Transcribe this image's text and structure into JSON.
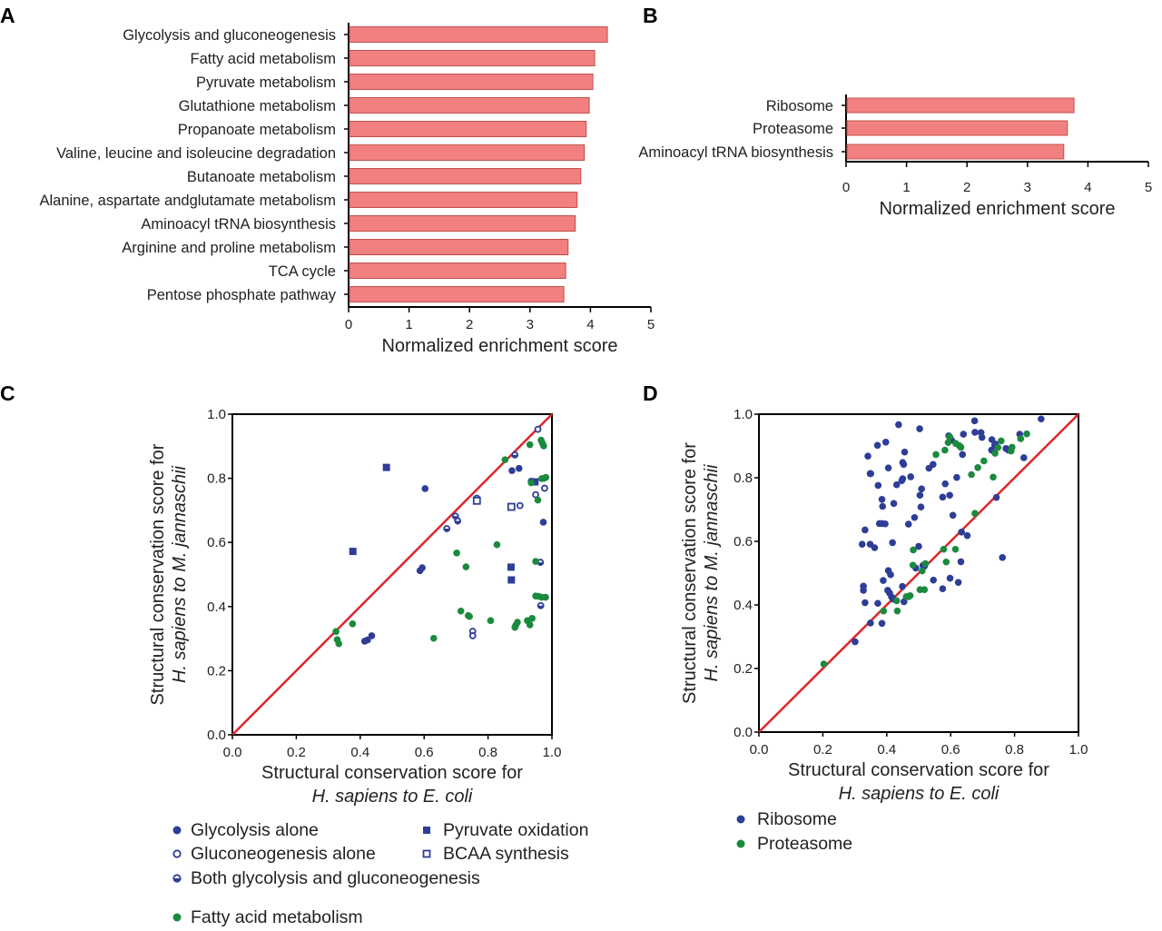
{
  "colors": {
    "bar_fill": "#f28080",
    "bar_stroke": "#c0504d",
    "blue": "#2e3d96",
    "green": "#1b8a3e",
    "diagonal": "#e0242a"
  },
  "chart_data": [
    {
      "panel": "A",
      "type": "bar",
      "orientation": "horizontal",
      "categories": [
        "Glycolysis and gluconeogenesis",
        "Fatty acid metabolism",
        "Pyruvate metabolism",
        "Glutathione metabolism",
        "Propanoate metabolism",
        "Valine, leucine and isoleucine degradation",
        "Butanoate metabolism",
        "Alanine, aspartate andglutamate metabolism",
        "Aminoacyl tRNA biosynthesis",
        "Arginine and proline metabolism",
        "TCA cycle",
        "Pentose phosphate pathway"
      ],
      "values": [
        4.28,
        4.07,
        4.04,
        3.98,
        3.93,
        3.9,
        3.84,
        3.78,
        3.75,
        3.63,
        3.59,
        3.56
      ],
      "xlabel": "Normalized enrichment score",
      "xlim": [
        0,
        5
      ],
      "xticks": [
        "0",
        "1",
        "2",
        "3",
        "4",
        "5"
      ]
    },
    {
      "panel": "B",
      "type": "bar",
      "orientation": "horizontal",
      "categories": [
        "Ribosome",
        "Proteasome",
        "Aminoacyl tRNA biosynthesis"
      ],
      "values": [
        3.77,
        3.66,
        3.6
      ],
      "xlabel": "Normalized enrichment score",
      "xlim": [
        0,
        5
      ],
      "xticks": [
        "0",
        "1",
        "2",
        "3",
        "4",
        "5"
      ]
    },
    {
      "panel": "C",
      "type": "scatter",
      "xlabel": [
        "Structural conservation score for",
        "H. sapiens to E. coli"
      ],
      "ylabel": [
        "Structural conservation score for",
        "H. sapiens to M. jannaschii"
      ],
      "xlim": [
        0,
        1
      ],
      "ylim": [
        0,
        1
      ],
      "xticks": [
        "0.0",
        "0.2",
        "0.4",
        "0.6",
        "0.8",
        "1.0"
      ],
      "yticks": [
        "0.0",
        "0.2",
        "0.4",
        "0.6",
        "0.8",
        "1.0"
      ],
      "diagonal": true,
      "series": [
        {
          "name": "Glycolysis alone",
          "marker": "circle",
          "color": "blue",
          "points": [
            [
              0.603,
              0.768
            ],
            [
              0.875,
              0.824
            ],
            [
              0.897,
              0.831
            ],
            [
              0.973,
              0.663
            ],
            [
              0.587,
              0.512
            ],
            [
              0.594,
              0.521
            ],
            [
              0.414,
              0.292
            ],
            [
              0.423,
              0.296
            ],
            [
              0.436,
              0.309
            ],
            [
              0.935,
              0.791
            ]
          ]
        },
        {
          "name": "Gluconeogenesis alone",
          "marker": "open-circle",
          "color": "blue",
          "points": [
            [
              0.956,
              0.953
            ],
            [
              0.949,
              0.749
            ],
            [
              0.9,
              0.715
            ],
            [
              0.977,
              0.769
            ],
            [
              0.752,
              0.323
            ],
            [
              0.752,
              0.309
            ]
          ]
        },
        {
          "name": "Both glycolysis and gluconeogenesis",
          "marker": "half-circle",
          "color": "blue",
          "points": [
            [
              0.884,
              0.873
            ],
            [
              0.698,
              0.682
            ],
            [
              0.705,
              0.667
            ],
            [
              0.671,
              0.643
            ],
            [
              0.964,
              0.538
            ],
            [
              0.965,
              0.403
            ],
            [
              0.765,
              0.738
            ]
          ]
        },
        {
          "name": "Pyruvate oxidation",
          "marker": "square",
          "color": "blue",
          "points": [
            [
              0.482,
              0.834
            ],
            [
              0.377,
              0.572
            ],
            [
              0.872,
              0.523
            ],
            [
              0.873,
              0.483
            ],
            [
              0.947,
              0.789
            ]
          ]
        },
        {
          "name": "BCAA synthesis",
          "marker": "open-square",
          "color": "blue",
          "points": [
            [
              0.873,
              0.711
            ],
            [
              0.765,
              0.73
            ]
          ]
        },
        {
          "name": "Fatty acid metabolism",
          "marker": "circle",
          "color": "green",
          "points": [
            [
              0.931,
              0.905
            ],
            [
              0.966,
              0.919
            ],
            [
              0.97,
              0.91
            ],
            [
              0.974,
              0.901
            ],
            [
              0.853,
              0.858
            ],
            [
              0.968,
              0.799
            ],
            [
              0.975,
              0.8
            ],
            [
              0.981,
              0.803
            ],
            [
              0.956,
              0.732
            ],
            [
              0.935,
              0.786
            ],
            [
              0.828,
              0.593
            ],
            [
              0.702,
              0.567
            ],
            [
              0.731,
              0.524
            ],
            [
              0.949,
              0.541
            ],
            [
              0.949,
              0.433
            ],
            [
              0.958,
              0.432
            ],
            [
              0.968,
              0.429
            ],
            [
              0.98,
              0.429
            ],
            [
              0.715,
              0.386
            ],
            [
              0.738,
              0.372
            ],
            [
              0.742,
              0.369
            ],
            [
              0.808,
              0.356
            ],
            [
              0.892,
              0.351
            ],
            [
              0.887,
              0.342
            ],
            [
              0.884,
              0.335
            ],
            [
              0.923,
              0.356
            ],
            [
              0.938,
              0.363
            ],
            [
              0.931,
              0.343
            ],
            [
              0.63,
              0.301
            ],
            [
              0.376,
              0.346
            ],
            [
              0.324,
              0.322
            ],
            [
              0.328,
              0.297
            ],
            [
              0.333,
              0.284
            ]
          ]
        }
      ]
    },
    {
      "panel": "D",
      "type": "scatter",
      "xlabel": [
        "Structural conservation score for",
        "H. sapiens to E. coli"
      ],
      "ylabel": [
        "Structural conservation score for",
        "H. sapiens to M. jannaschii"
      ],
      "xlim": [
        0,
        1
      ],
      "ylim": [
        0,
        1
      ],
      "xticks": [
        "0.0",
        "0.2",
        "0.4",
        "0.6",
        "0.8",
        "1.0"
      ],
      "yticks": [
        "0.0",
        "0.2",
        "0.4",
        "0.6",
        "0.8",
        "1.0"
      ],
      "diagonal": true,
      "series": [
        {
          "name": "Ribosome",
          "marker": "circle",
          "color": "blue",
          "points": [
            [
              0.437,
              0.967
            ],
            [
              0.503,
              0.954
            ],
            [
              0.675,
              0.979
            ],
            [
              0.883,
              0.985
            ],
            [
              0.371,
              0.902
            ],
            [
              0.397,
              0.912
            ],
            [
              0.341,
              0.868
            ],
            [
              0.348,
              0.813
            ],
            [
              0.35,
              0.813
            ],
            [
              0.405,
              0.831
            ],
            [
              0.456,
              0.881
            ],
            [
              0.45,
              0.848
            ],
            [
              0.453,
              0.842
            ],
            [
              0.475,
              0.803
            ],
            [
              0.431,
              0.778
            ],
            [
              0.447,
              0.791
            ],
            [
              0.45,
              0.797
            ],
            [
              0.373,
              0.776
            ],
            [
              0.385,
              0.732
            ],
            [
              0.387,
              0.71
            ],
            [
              0.422,
              0.719
            ],
            [
              0.509,
              0.765
            ],
            [
              0.504,
              0.745
            ],
            [
              0.507,
              0.708
            ],
            [
              0.487,
              0.675
            ],
            [
              0.468,
              0.654
            ],
            [
              0.377,
              0.656
            ],
            [
              0.385,
              0.656
            ],
            [
              0.395,
              0.655
            ],
            [
              0.332,
              0.636
            ],
            [
              0.323,
              0.591
            ],
            [
              0.348,
              0.591
            ],
            [
              0.362,
              0.58
            ],
            [
              0.418,
              0.596
            ],
            [
              0.5,
              0.584
            ],
            [
              0.532,
              0.83
            ],
            [
              0.545,
              0.842
            ],
            [
              0.583,
              0.781
            ],
            [
              0.575,
              0.739
            ],
            [
              0.597,
              0.745
            ],
            [
              0.607,
              0.682
            ],
            [
              0.594,
              0.932
            ],
            [
              0.598,
              0.925
            ],
            [
              0.603,
              0.918
            ],
            [
              0.64,
              0.937
            ],
            [
              0.676,
              0.943
            ],
            [
              0.695,
              0.942
            ],
            [
              0.698,
              0.927
            ],
            [
              0.637,
              0.873
            ],
            [
              0.619,
              0.801
            ],
            [
              0.729,
              0.92
            ],
            [
              0.738,
              0.903
            ],
            [
              0.728,
              0.887
            ],
            [
              0.74,
              0.906
            ],
            [
              0.773,
              0.892
            ],
            [
              0.78,
              0.887
            ],
            [
              0.816,
              0.937
            ],
            [
              0.829,
              0.863
            ],
            [
              0.743,
              0.738
            ],
            [
              0.634,
              0.629
            ],
            [
              0.652,
              0.618
            ],
            [
              0.762,
              0.549
            ],
            [
              0.632,
              0.536
            ],
            [
              0.513,
              0.524
            ],
            [
              0.518,
              0.522
            ],
            [
              0.491,
              0.516
            ],
            [
              0.546,
              0.478
            ],
            [
              0.598,
              0.484
            ],
            [
              0.624,
              0.471
            ],
            [
              0.575,
              0.451
            ],
            [
              0.405,
              0.508
            ],
            [
              0.412,
              0.495
            ],
            [
              0.389,
              0.477
            ],
            [
              0.327,
              0.459
            ],
            [
              0.327,
              0.446
            ],
            [
              0.332,
              0.407
            ],
            [
              0.372,
              0.405
            ],
            [
              0.403,
              0.446
            ],
            [
              0.409,
              0.437
            ],
            [
              0.415,
              0.425
            ],
            [
              0.42,
              0.418
            ],
            [
              0.449,
              0.458
            ],
            [
              0.454,
              0.41
            ],
            [
              0.349,
              0.343
            ],
            [
              0.385,
              0.342
            ],
            [
              0.301,
              0.284
            ]
          ]
        },
        {
          "name": "Proteasome",
          "marker": "circle",
          "color": "green",
          "points": [
            [
              0.203,
              0.214
            ],
            [
              0.39,
              0.381
            ],
            [
              0.433,
              0.381
            ],
            [
              0.431,
              0.413
            ],
            [
              0.461,
              0.426
            ],
            [
              0.468,
              0.426
            ],
            [
              0.473,
              0.429
            ],
            [
              0.504,
              0.448
            ],
            [
              0.518,
              0.448
            ],
            [
              0.482,
              0.525
            ],
            [
              0.511,
              0.507
            ],
            [
              0.521,
              0.53
            ],
            [
              0.483,
              0.573
            ],
            [
              0.578,
              0.575
            ],
            [
              0.615,
              0.575
            ],
            [
              0.586,
              0.535
            ],
            [
              0.676,
              0.688
            ],
            [
              0.665,
              0.81
            ],
            [
              0.685,
              0.832
            ],
            [
              0.704,
              0.853
            ],
            [
              0.733,
              0.802
            ],
            [
              0.554,
              0.873
            ],
            [
              0.582,
              0.887
            ],
            [
              0.592,
              0.911
            ],
            [
              0.597,
              0.929
            ],
            [
              0.616,
              0.908
            ],
            [
              0.627,
              0.901
            ],
            [
              0.632,
              0.896
            ],
            [
              0.739,
              0.877
            ],
            [
              0.748,
              0.895
            ],
            [
              0.758,
              0.916
            ],
            [
              0.792,
              0.896
            ],
            [
              0.789,
              0.884
            ],
            [
              0.819,
              0.923
            ],
            [
              0.838,
              0.938
            ]
          ]
        }
      ]
    }
  ]
}
